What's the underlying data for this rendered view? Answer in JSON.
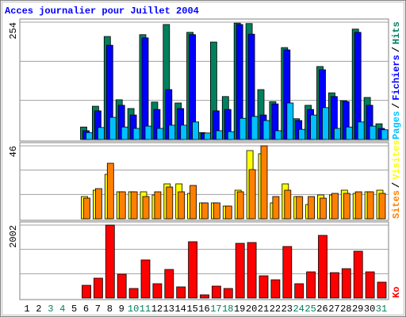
{
  "chart_data": [
    {
      "type": "bar",
      "title": "Acces journalier pour Juillet 2004",
      "legend_separator": "/",
      "ylim": [
        0,
        254
      ],
      "yticks": [
        254
      ],
      "series": [
        {
          "name": "Hits",
          "color": "#00805c",
          "values": [
            0,
            0,
            0,
            0,
            0,
            27,
            72,
            223,
            86,
            67,
            227,
            81,
            249,
            79,
            232,
            15,
            211,
            93,
            252,
            251,
            108,
            82,
            199,
            45,
            74,
            158,
            101,
            84,
            239,
            91,
            34
          ]
        },
        {
          "name": "Fichiers",
          "color": "#0000ff",
          "values": [
            0,
            0,
            0,
            0,
            0,
            19,
            62,
            204,
            74,
            53,
            220,
            65,
            108,
            67,
            227,
            14,
            62,
            65,
            249,
            228,
            53,
            77,
            194,
            41,
            65,
            151,
            93,
            82,
            232,
            74,
            24
          ]
        },
        {
          "name": "Pages",
          "color": "#00c0ff",
          "values": [
            0,
            0,
            0,
            0,
            0,
            15,
            26,
            48,
            27,
            24,
            29,
            24,
            31,
            31,
            38,
            14,
            19,
            17,
            46,
            50,
            41,
            19,
            79,
            22,
            53,
            69,
            24,
            27,
            38,
            29,
            21
          ]
        }
      ]
    },
    {
      "type": "bar",
      "ylim": [
        0,
        46
      ],
      "yticks": [
        46
      ],
      "series": [
        {
          "name": "Visites",
          "color": "#ffff00",
          "values": [
            0,
            0,
            0,
            0,
            0,
            14,
            18,
            28,
            17,
            17,
            17,
            15,
            22,
            22,
            16,
            10,
            10,
            8,
            18,
            43,
            41,
            10,
            22,
            14,
            9,
            15,
            15,
            18,
            16,
            17,
            18
          ]
        },
        {
          "name": "Sites",
          "color": "#ff8000",
          "values": [
            0,
            0,
            0,
            0,
            0,
            13,
            19,
            35,
            17,
            17,
            14,
            17,
            20,
            17,
            21,
            10,
            10,
            8,
            17,
            31,
            46,
            14,
            18,
            14,
            14,
            13,
            16,
            16,
            17,
            17,
            16
          ]
        }
      ]
    },
    {
      "type": "bar",
      "ylim": [
        0,
        2002
      ],
      "yticks": [
        2002
      ],
      "categories": [
        "1",
        "2",
        "3",
        "4",
        "5",
        "6",
        "7",
        "8",
        "9",
        "10",
        "11",
        "12",
        "13",
        "14",
        "15",
        "16",
        "17",
        "18",
        "19",
        "20",
        "21",
        "22",
        "23",
        "24",
        "25",
        "26",
        "27",
        "28",
        "29",
        "30",
        "31"
      ],
      "category_colors": [
        "#000000",
        "#000000",
        "#00805c",
        "#00805c",
        "#000000",
        "#000000",
        "#000000",
        "#000000",
        "#000000",
        "#00805c",
        "#00805c",
        "#000000",
        "#000000",
        "#000000",
        "#000000",
        "#000000",
        "#00805c",
        "#00805c",
        "#000000",
        "#000000",
        "#000000",
        "#000000",
        "#000000",
        "#00805c",
        "#00805c",
        "#000000",
        "#000000",
        "#000000",
        "#000000",
        "#000000",
        "#00805c"
      ],
      "series": [
        {
          "name": "Ko",
          "color": "#ff0000",
          "values": [
            0,
            0,
            0,
            0,
            0,
            348,
            544,
            2002,
            653,
            261,
            1045,
            392,
            783,
            305,
            1545,
            87,
            326,
            261,
            1501,
            1523,
            609,
            500,
            1414,
            392,
            718,
            1719,
            696,
            805,
            1284,
            718,
            435
          ]
        }
      ]
    }
  ]
}
